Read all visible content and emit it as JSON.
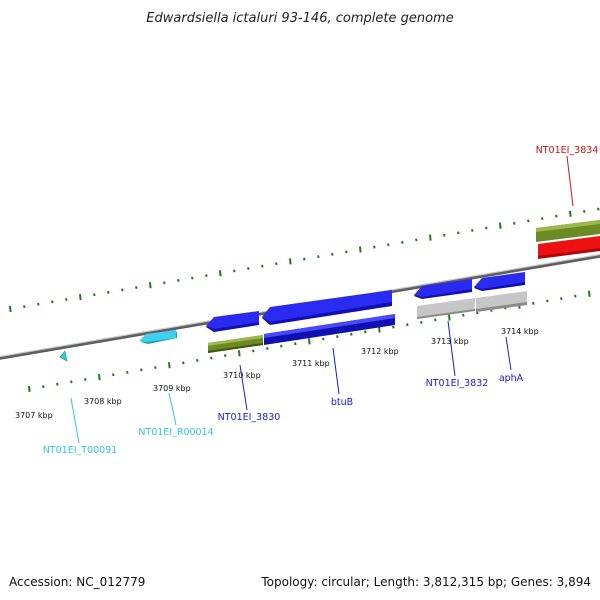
{
  "title": "Edwardsiella ictaluri 93-146, complete genome",
  "footer": {
    "accession": "Accession: NC_012779",
    "summary": "Topology: circular; Length: 3,812,315 bp; Genes: 3,894"
  },
  "scale_labels": [
    "3707 kbp",
    "3708 kbp",
    "3709 kbp",
    "3710 kbp",
    "3711 kbp",
    "3712 kbp",
    "3713 kbp",
    "3714 kbp"
  ],
  "feature_labels": {
    "t00091": "NT01EI_T00091",
    "r00014": "NT01EI_R00014",
    "g3830": "NT01EI_3830",
    "btuB": "btuB",
    "g3832": "NT01EI_3832",
    "aphA": "aphA",
    "g3834": "NT01EI_3834"
  },
  "colors": {
    "cds": "#1a1ad6",
    "trna": "#33c6e6",
    "gene": "#6b8a23",
    "pseudo": "#b8b8b8",
    "highlight": "#ee1111",
    "tick": "#1f7a1f",
    "backbone": "#8c8c8c"
  }
}
